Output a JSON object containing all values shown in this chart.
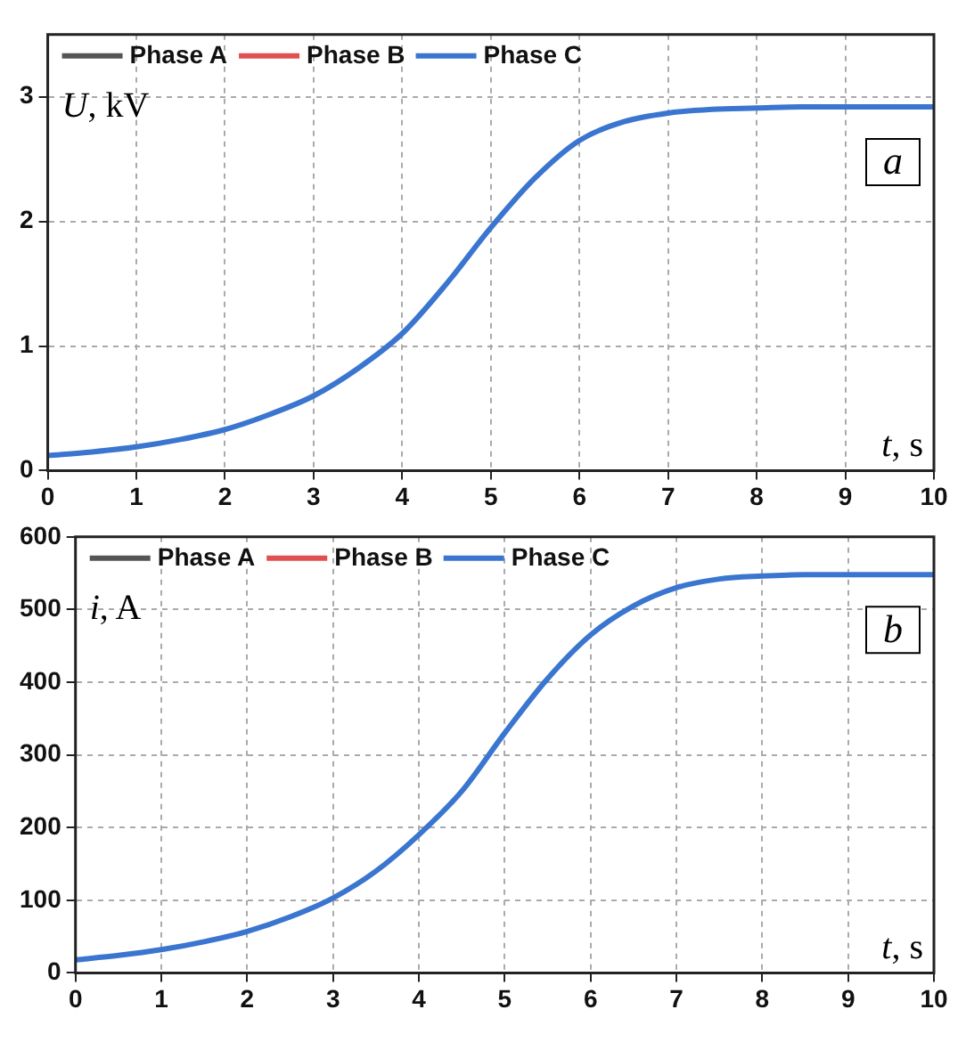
{
  "chart_data": [
    {
      "type": "line",
      "xlabel": "t, s",
      "ylabel": "U, kV",
      "annotations": [
        "a"
      ],
      "x": [
        0,
        0.5,
        1,
        1.5,
        2,
        2.5,
        3,
        3.5,
        4,
        4.5,
        5,
        5.5,
        6,
        6.5,
        7,
        7.5,
        8,
        8.5,
        9,
        9.5,
        10
      ],
      "xlim": [
        0,
        10
      ],
      "xticks": [
        0,
        1,
        2,
        3,
        4,
        5,
        6,
        7,
        8,
        9,
        10
      ],
      "ylim": [
        0,
        3.5
      ],
      "yticks": [
        0,
        1,
        2,
        3
      ],
      "grid": true,
      "legend": "top left",
      "series": [
        {
          "name": "Phase A",
          "color": "#555555",
          "values": [
            null,
            null,
            null,
            null,
            null,
            null,
            null,
            null,
            null,
            null,
            null,
            null,
            null,
            null,
            null,
            null,
            null,
            null,
            null,
            null,
            null
          ]
        },
        {
          "name": "Phase B",
          "color": "#e05050",
          "values": [
            null,
            null,
            null,
            null,
            null,
            null,
            null,
            null,
            null,
            null,
            null,
            null,
            null,
            null,
            null,
            null,
            null,
            null,
            null,
            null,
            null
          ]
        },
        {
          "name": "Phase C",
          "color": "#3a75d0",
          "values": [
            0.12,
            0.15,
            0.19,
            0.25,
            0.33,
            0.45,
            0.6,
            0.82,
            1.1,
            1.5,
            1.95,
            2.35,
            2.65,
            2.8,
            2.87,
            2.9,
            2.91,
            2.92,
            2.92,
            2.92,
            2.92
          ]
        }
      ]
    },
    {
      "type": "line",
      "xlabel": "t, s",
      "ylabel": "i, A",
      "annotations": [
        "b"
      ],
      "x": [
        0,
        0.5,
        1,
        1.5,
        2,
        2.5,
        3,
        3.5,
        4,
        4.5,
        5,
        5.5,
        6,
        6.5,
        7,
        7.5,
        8,
        8.5,
        9,
        9.5,
        10
      ],
      "xlim": [
        0,
        10
      ],
      "xticks": [
        0,
        1,
        2,
        3,
        4,
        5,
        6,
        7,
        8,
        9,
        10
      ],
      "ylim": [
        0,
        600
      ],
      "yticks": [
        0,
        100,
        200,
        300,
        400,
        500,
        600
      ],
      "grid": true,
      "legend": "top left",
      "series": [
        {
          "name": "Phase A",
          "color": "#555555",
          "values": [
            null,
            null,
            null,
            null,
            null,
            null,
            null,
            null,
            null,
            null,
            null,
            null,
            null,
            null,
            null,
            null,
            null,
            null,
            null,
            null,
            null
          ]
        },
        {
          "name": "Phase B",
          "color": "#e05050",
          "values": [
            null,
            null,
            null,
            null,
            null,
            null,
            null,
            null,
            null,
            null,
            null,
            null,
            null,
            null,
            null,
            null,
            null,
            null,
            null,
            null,
            null
          ]
        },
        {
          "name": "Phase C",
          "color": "#3a75d0",
          "values": [
            18,
            24,
            32,
            43,
            57,
            77,
            103,
            140,
            190,
            250,
            330,
            405,
            465,
            505,
            530,
            542,
            546,
            548,
            548,
            548,
            548
          ]
        }
      ]
    }
  ]
}
